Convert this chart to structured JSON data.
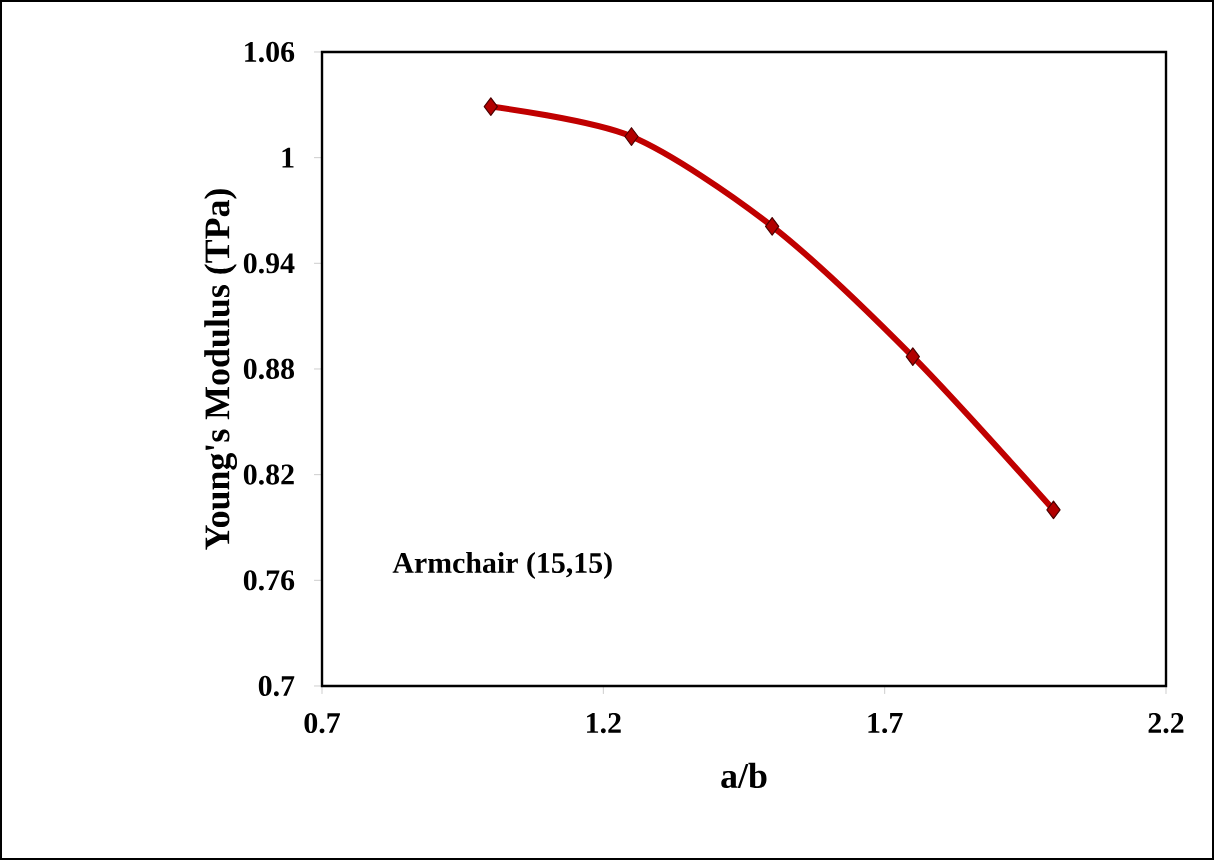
{
  "chart_data": {
    "type": "line",
    "xlabel": "a/b",
    "ylabel": "Young's Modulus (TPa)",
    "annotations": [
      "Armchair (15,15)"
    ],
    "x": [
      1.0,
      1.25,
      1.5,
      1.75,
      2.0
    ],
    "series": [
      {
        "color": "#c00000",
        "values": [
          1.029,
          1.012,
          0.961,
          0.887,
          0.8
        ]
      }
    ],
    "xlim": [
      0.7,
      2.2
    ],
    "xticks": [
      0.7,
      1.2,
      1.7,
      2.2
    ],
    "ylim": [
      0.7,
      1.06
    ],
    "yticks": [
      0.7,
      0.76,
      0.82,
      0.88,
      0.94,
      1,
      1.06
    ],
    "grid": false,
    "marker": "diamond",
    "line_style": "solid"
  }
}
